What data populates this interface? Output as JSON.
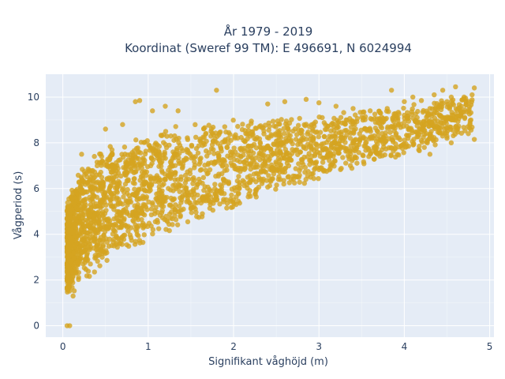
{
  "chart_data": {
    "type": "scatter",
    "title_lines": [
      "År 1979 - 2019",
      "Koordinat (Sweref 99 TM): E 496691, N 6024994"
    ],
    "xlabel": "Signifikant våghöjd (m)",
    "ylabel": "Vågperiod (s)",
    "xlim": [
      -0.2,
      5.05
    ],
    "ylim": [
      -0.5,
      11.0
    ],
    "x_ticks": [
      0,
      1,
      2,
      3,
      4,
      5
    ],
    "y_ticks": [
      0,
      2,
      4,
      6,
      8,
      10
    ],
    "grid": true,
    "legend": "none",
    "colors": {
      "marker": "#d4a420",
      "plot_bg": "#e5ecf6",
      "grid": "#ffffff",
      "text": "#2a3f5f"
    },
    "series": [
      {
        "density_envelope": [
          {
            "x": 0.05,
            "y_low": 1.2,
            "y_high": 5.6
          },
          {
            "x": 0.1,
            "y_low": 1.3,
            "y_high": 6.2
          },
          {
            "x": 0.2,
            "y_low": 1.7,
            "y_high": 6.9
          },
          {
            "x": 0.3,
            "y_low": 2.0,
            "y_high": 7.4
          },
          {
            "x": 0.5,
            "y_low": 2.5,
            "y_high": 7.9
          },
          {
            "x": 0.75,
            "y_low": 3.1,
            "y_high": 8.3
          },
          {
            "x": 1.0,
            "y_low": 3.6,
            "y_high": 8.6
          },
          {
            "x": 1.5,
            "y_low": 4.4,
            "y_high": 8.9
          },
          {
            "x": 2.0,
            "y_low": 5.1,
            "y_high": 9.1
          },
          {
            "x": 2.5,
            "y_low": 5.7,
            "y_high": 9.2
          },
          {
            "x": 3.0,
            "y_low": 6.3,
            "y_high": 9.3
          },
          {
            "x": 3.5,
            "y_low": 6.9,
            "y_high": 9.5
          },
          {
            "x": 4.0,
            "y_low": 7.4,
            "y_high": 9.7
          },
          {
            "x": 4.5,
            "y_low": 8.0,
            "y_high": 10.0
          },
          {
            "x": 4.8,
            "y_low": 8.3,
            "y_high": 10.3
          }
        ],
        "points": [
          [
            0.05,
            0.0
          ],
          [
            0.08,
            0.0
          ],
          [
            0.05,
            1.6
          ],
          [
            0.08,
            1.7
          ],
          [
            0.12,
            1.3
          ],
          [
            0.07,
            5.2
          ],
          [
            0.1,
            5.6
          ],
          [
            0.22,
            7.5
          ],
          [
            0.5,
            8.6
          ],
          [
            0.7,
            8.8
          ],
          [
            0.85,
            9.8
          ],
          [
            0.9,
            9.85
          ],
          [
            1.05,
            9.4
          ],
          [
            1.2,
            9.6
          ],
          [
            1.35,
            9.4
          ],
          [
            1.8,
            10.3
          ],
          [
            2.4,
            9.7
          ],
          [
            2.6,
            9.8
          ],
          [
            2.85,
            9.9
          ],
          [
            3.0,
            9.75
          ],
          [
            3.2,
            9.6
          ],
          [
            3.4,
            9.5
          ],
          [
            3.6,
            9.4
          ],
          [
            3.8,
            9.5
          ],
          [
            3.85,
            10.3
          ],
          [
            4.0,
            9.8
          ],
          [
            4.1,
            10.0
          ],
          [
            4.2,
            9.85
          ],
          [
            4.3,
            9.5
          ],
          [
            4.35,
            10.1
          ],
          [
            4.45,
            10.3
          ],
          [
            4.5,
            9.8
          ],
          [
            4.55,
            10.0
          ],
          [
            4.6,
            10.45
          ],
          [
            4.7,
            10.0
          ],
          [
            4.82,
            10.4
          ],
          [
            4.05,
            8.6
          ],
          [
            4.15,
            8.9
          ],
          [
            4.2,
            8.1
          ],
          [
            4.3,
            8.2
          ],
          [
            4.4,
            8.6
          ],
          [
            4.5,
            8.2
          ],
          [
            4.6,
            8.7
          ],
          [
            4.75,
            8.4
          ],
          [
            4.78,
            9.0
          ],
          [
            4.82,
            8.15
          ],
          [
            4.05,
            7.85
          ],
          [
            4.3,
            7.5
          ],
          [
            4.55,
            8.0
          ]
        ]
      }
    ]
  }
}
